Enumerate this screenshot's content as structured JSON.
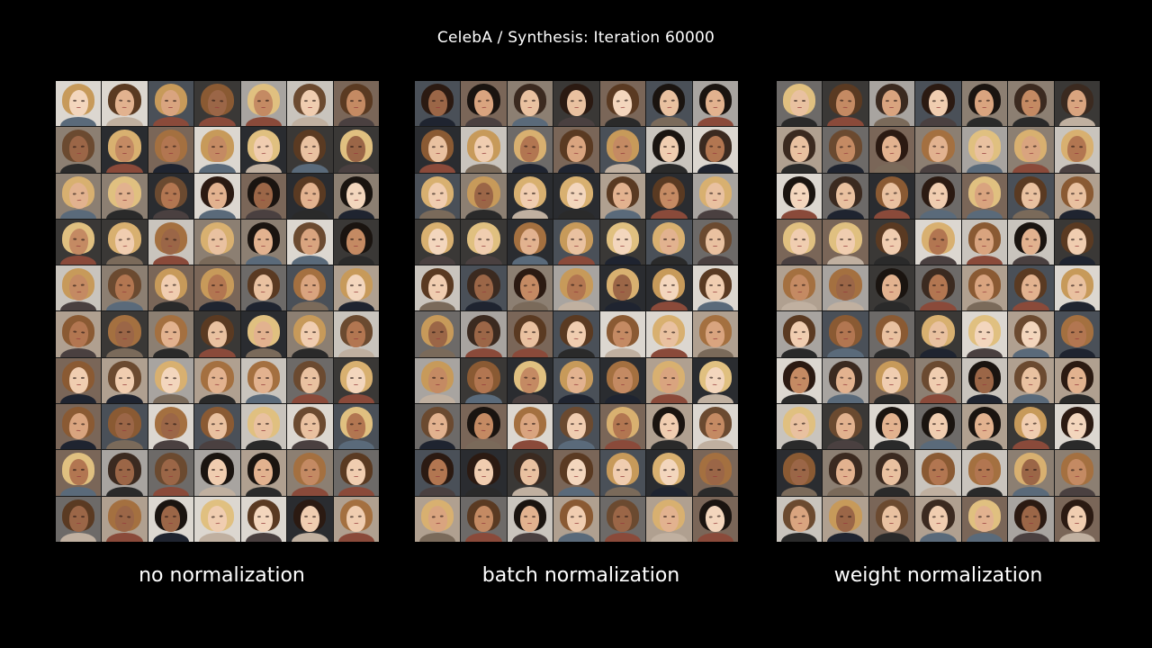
{
  "title": "CelebA / Synthesis: Iteration 60000",
  "panels": [
    {
      "caption": "no normalization",
      "rows": 10,
      "cols": 7
    },
    {
      "caption": "batch normalization",
      "rows": 10,
      "cols": 7
    },
    {
      "caption": "weight normalization",
      "rows": 10,
      "cols": 7
    }
  ],
  "palette": {
    "background": "#000000",
    "skin": [
      "#e9c1a0",
      "#d9a47f",
      "#c48a63",
      "#f0cdb0",
      "#b27651",
      "#e2b28f",
      "#9b6647",
      "#f3d6bd"
    ],
    "hair": [
      "#2b1a12",
      "#5a3a22",
      "#8a5a33",
      "#c79a5a",
      "#e0c080",
      "#3b2a20",
      "#1a1410",
      "#a47040",
      "#d8b070",
      "#6b4a30"
    ],
    "tile_bg": [
      "#6d6a68",
      "#a8a4a0",
      "#3a3836",
      "#c9c4bd",
      "#2a2c30",
      "#8c7f72",
      "#dcd7d0",
      "#4a5058",
      "#7a6658",
      "#b0a090"
    ],
    "clothes": [
      "#1f2430",
      "#4a4040",
      "#7a6a5a",
      "#2a2a2a",
      "#5a6a7a",
      "#8a4a3a",
      "#c0b0a0"
    ]
  }
}
